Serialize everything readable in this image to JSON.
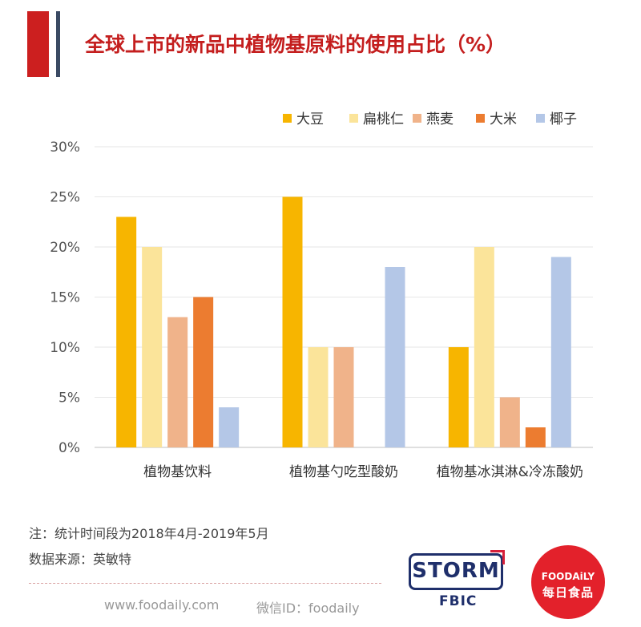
{
  "header": {
    "title": "全球上市的新品中植物基原料的使用占比（%）"
  },
  "chart_data": {
    "type": "bar",
    "title": "全球上市的新品中植物基原料的使用占比（%）",
    "xlabel": "",
    "ylabel": "",
    "ylim": [
      0,
      30
    ],
    "y_ticks": [
      0,
      5,
      10,
      15,
      20,
      25,
      30
    ],
    "y_tick_labels": [
      "0%",
      "5%",
      "10%",
      "15%",
      "20%",
      "25%",
      "30%"
    ],
    "grid": true,
    "legend_position": "top-right",
    "categories": [
      "植物基饮料",
      "植物基勺吃型酸奶",
      "植物基冰淇淋&冷冻酸奶"
    ],
    "series": [
      {
        "name": "大豆",
        "color": "#f7b500",
        "values": [
          23,
          25,
          10
        ]
      },
      {
        "name": "扁桃仁",
        "color": "#fbe49a",
        "values": [
          20,
          10,
          20
        ]
      },
      {
        "name": "燕麦",
        "color": "#f0b38a",
        "values": [
          13,
          10,
          5
        ]
      },
      {
        "name": "大米",
        "color": "#ec7c30",
        "values": [
          15,
          0,
          2
        ]
      },
      {
        "name": "椰子",
        "color": "#b4c7e7",
        "values": [
          4,
          18,
          19
        ]
      }
    ]
  },
  "notes": {
    "period": "注：统计时间段为2018年4月-2019年5月",
    "source": "数据来源：英敏特"
  },
  "footer": {
    "website": "www.foodaily.com",
    "wechat": "微信ID：foodaily"
  },
  "logos": {
    "storm": "STORM",
    "fbic": "FBIC",
    "foodaily_en": "FOODAiLY",
    "foodaily_cn": "每日食品"
  }
}
